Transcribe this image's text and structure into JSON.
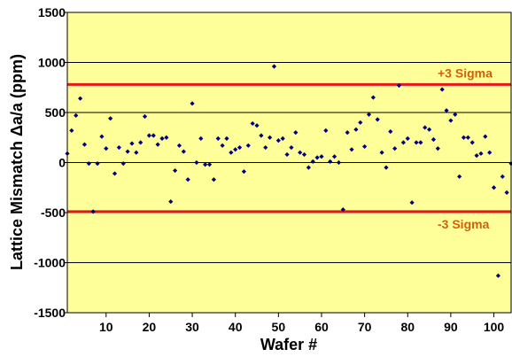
{
  "chart_data": {
    "type": "scatter",
    "title": "",
    "xlabel": "Wafer #",
    "ylabel": "Lattice Mismatch Δa/a (ppm)",
    "xlim": [
      1,
      104
    ],
    "ylim": [
      -1500,
      1500
    ],
    "x_ticks": [
      10,
      20,
      30,
      40,
      50,
      60,
      70,
      80,
      90,
      100
    ],
    "y_ticks": [
      -1500,
      -1000,
      -500,
      0,
      500,
      1000,
      1500
    ],
    "grid": "horizontal",
    "colors": {
      "plot_background": "#ffff99",
      "marker": "#000080",
      "reference_line": "#e8161e",
      "reference_label": "#d2600a",
      "gridline": "#000000"
    },
    "reference_lines": [
      {
        "label": "+3 Sigma",
        "y": 780
      },
      {
        "label": "-3 Sigma",
        "y": -490
      }
    ],
    "series": [
      {
        "x": [
          1,
          2,
          3,
          4,
          5,
          6,
          7,
          8,
          9,
          10,
          11,
          12,
          13,
          14,
          15,
          16,
          17,
          18,
          19,
          20,
          21,
          22,
          23,
          24,
          25,
          26,
          27,
          28,
          29,
          30,
          31,
          32,
          33,
          34,
          35,
          36,
          37,
          38,
          39,
          40,
          41,
          42,
          43,
          44,
          45,
          46,
          47,
          48,
          49,
          50,
          51,
          52,
          53,
          54,
          55,
          56,
          57,
          58,
          59,
          60,
          61,
          62,
          63,
          64,
          65,
          66,
          67,
          68,
          69,
          70,
          71,
          72,
          73,
          74,
          75,
          76,
          77,
          78,
          79,
          80,
          81,
          82,
          83,
          84,
          85,
          86,
          87,
          88,
          89,
          90,
          91,
          92,
          93,
          94,
          95,
          96,
          97,
          98,
          99,
          100,
          101,
          102,
          103,
          104
        ],
        "y": [
          90,
          320,
          470,
          640,
          180,
          -10,
          -490,
          -10,
          260,
          140,
          440,
          -110,
          150,
          -10,
          110,
          190,
          100,
          200,
          460,
          270,
          270,
          180,
          240,
          250,
          -390,
          -80,
          170,
          110,
          -170,
          590,
          0,
          240,
          -20,
          -20,
          -170,
          240,
          170,
          240,
          100,
          130,
          150,
          -90,
          170,
          390,
          370,
          270,
          150,
          250,
          960,
          220,
          240,
          80,
          150,
          300,
          100,
          80,
          -50,
          10,
          50,
          60,
          320,
          10,
          60,
          0,
          -470,
          300,
          130,
          330,
          400,
          160,
          480,
          650,
          430,
          100,
          -50,
          310,
          140,
          770,
          200,
          240,
          -400,
          200,
          200,
          350,
          330,
          230,
          140,
          730,
          520,
          420,
          480,
          -140,
          250,
          250,
          200,
          70,
          90,
          260,
          100,
          -250,
          -1130,
          -140,
          -300,
          -10
        ]
      }
    ]
  }
}
